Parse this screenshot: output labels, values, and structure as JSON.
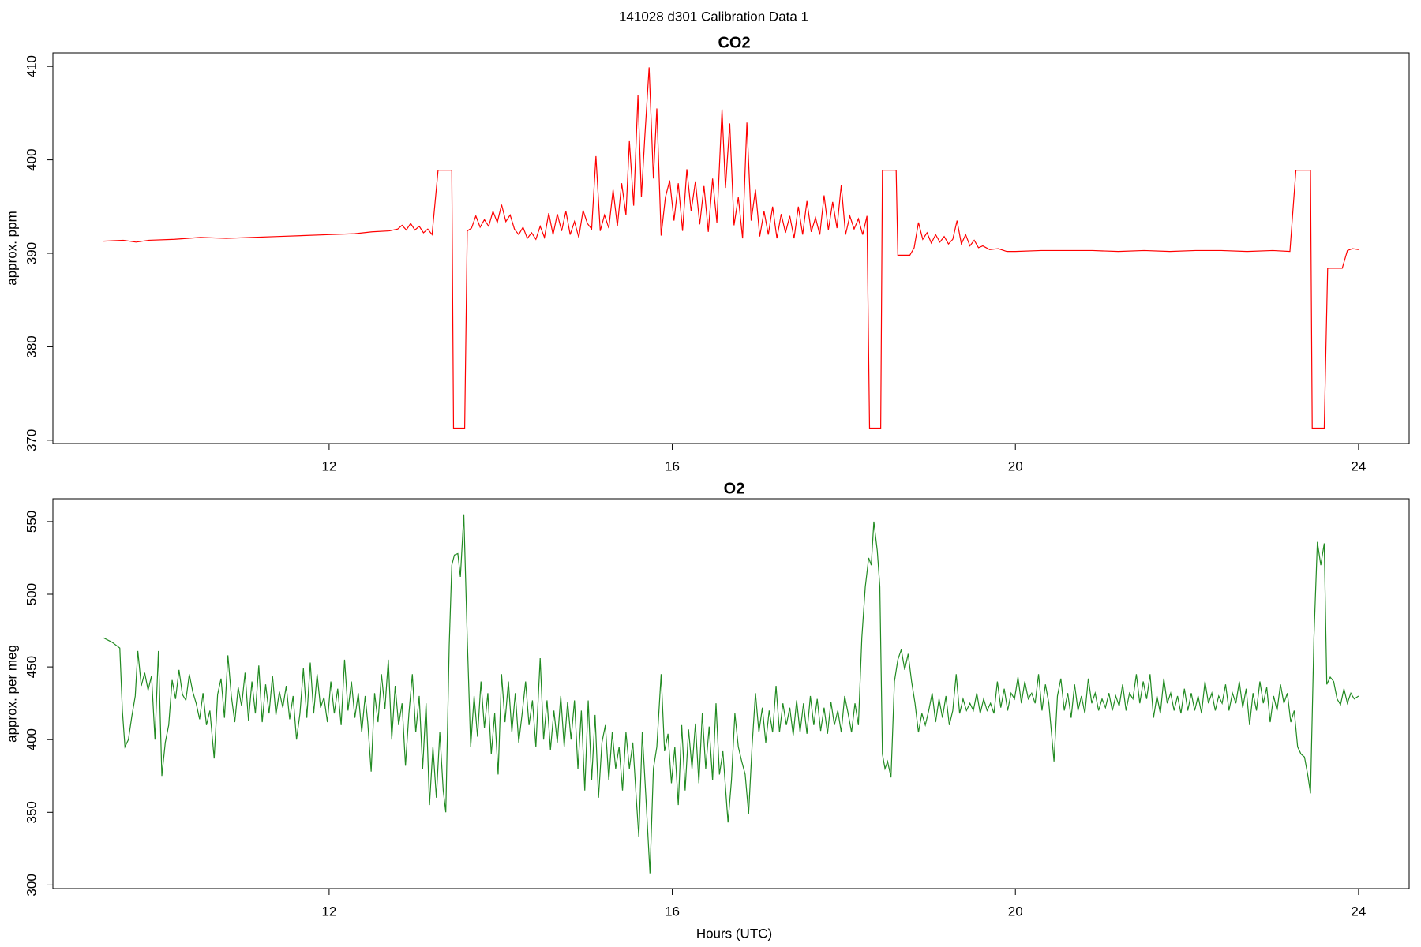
{
  "page_title": "141028   d301   Calibration Data 1",
  "chart_data": [
    {
      "type": "line",
      "title": "CO2",
      "y_label": "approx. ppm",
      "color": "#ff0000",
      "xlim": [
        8.78,
        24.59
      ],
      "xticks": [
        12,
        16,
        20,
        24
      ],
      "ylim": [
        369.65,
        411.45
      ],
      "yticks": [
        370,
        380,
        390,
        400,
        410
      ],
      "x": [
        9.37,
        9.6,
        9.75,
        9.9,
        10.2,
        10.5,
        10.8,
        11.1,
        11.4,
        11.7,
        12.0,
        12.3,
        12.5,
        12.7,
        12.8,
        12.85,
        12.9,
        12.95,
        13.0,
        13.05,
        13.1,
        13.15,
        13.2,
        13.27,
        13.43,
        13.45,
        13.58,
        13.61,
        13.66,
        13.71,
        13.76,
        13.81,
        13.86,
        13.91,
        13.96,
        14.01,
        14.06,
        14.11,
        14.16,
        14.21,
        14.26,
        14.31,
        14.36,
        14.41,
        14.46,
        14.51,
        14.56,
        14.61,
        14.66,
        14.71,
        14.76,
        14.81,
        14.86,
        14.91,
        14.96,
        15.01,
        15.06,
        15.11,
        15.16,
        15.21,
        15.26,
        15.31,
        15.36,
        15.41,
        15.46,
        15.5,
        15.55,
        15.6,
        15.64,
        15.68,
        15.73,
        15.78,
        15.82,
        15.87,
        15.92,
        15.97,
        16.02,
        16.07,
        16.12,
        16.17,
        16.22,
        16.27,
        16.32,
        16.37,
        16.42,
        16.47,
        16.52,
        16.58,
        16.62,
        16.67,
        16.72,
        16.77,
        16.82,
        16.87,
        16.92,
        16.97,
        17.02,
        17.07,
        17.12,
        17.17,
        17.22,
        17.27,
        17.32,
        17.37,
        17.42,
        17.47,
        17.52,
        17.57,
        17.62,
        17.67,
        17.72,
        17.77,
        17.82,
        17.87,
        17.92,
        17.97,
        18.02,
        18.07,
        18.12,
        18.17,
        18.22,
        18.27,
        18.3,
        18.43,
        18.45,
        18.61,
        18.63,
        18.77,
        18.82,
        18.87,
        18.92,
        18.97,
        19.02,
        19.07,
        19.12,
        19.17,
        19.22,
        19.27,
        19.32,
        19.37,
        19.42,
        19.47,
        19.52,
        19.57,
        19.62,
        19.7,
        19.8,
        19.9,
        20.0,
        20.3,
        20.6,
        20.9,
        21.2,
        21.5,
        21.8,
        22.1,
        22.4,
        22.7,
        23.0,
        23.2,
        23.27,
        23.44,
        23.46,
        23.6,
        23.64,
        23.81,
        23.87,
        23.93,
        24.0
      ],
      "values": [
        391.3,
        391.4,
        391.2,
        391.4,
        391.5,
        391.7,
        391.6,
        391.7,
        391.8,
        391.9,
        392.0,
        392.1,
        392.3,
        392.4,
        392.6,
        393.0,
        392.5,
        393.2,
        392.5,
        392.9,
        392.2,
        392.6,
        392.0,
        398.9,
        398.9,
        371.3,
        371.3,
        392.4,
        392.7,
        394.0,
        392.8,
        393.6,
        392.9,
        394.5,
        393.3,
        395.2,
        393.4,
        394.1,
        392.6,
        392.0,
        392.8,
        391.6,
        392.2,
        391.5,
        392.9,
        391.7,
        394.3,
        392.0,
        394.2,
        392.4,
        394.5,
        392.0,
        393.4,
        391.7,
        394.6,
        393.2,
        392.6,
        400.4,
        392.4,
        394.1,
        392.7,
        396.8,
        392.9,
        397.5,
        394.1,
        402.0,
        395.1,
        406.9,
        396.0,
        402.5,
        409.9,
        398.0,
        405.5,
        391.9,
        396.0,
        397.8,
        393.5,
        397.5,
        392.4,
        399.0,
        394.5,
        397.7,
        393.1,
        397.2,
        392.3,
        398.0,
        393.3,
        405.4,
        397.0,
        403.9,
        393.0,
        396.0,
        391.6,
        404.0,
        393.5,
        396.8,
        391.8,
        394.5,
        392.0,
        395.0,
        391.6,
        394.2,
        392.2,
        394.0,
        391.6,
        395.0,
        392.0,
        395.6,
        392.3,
        393.8,
        392.0,
        396.2,
        392.5,
        395.5,
        392.7,
        397.3,
        392.0,
        394.0,
        392.6,
        393.7,
        392.0,
        394.0,
        371.3,
        371.3,
        398.9,
        398.9,
        389.8,
        389.8,
        390.6,
        393.3,
        391.5,
        392.2,
        391.1,
        392.0,
        391.2,
        391.8,
        391.0,
        391.5,
        393.5,
        391.0,
        392.0,
        390.8,
        391.4,
        390.6,
        390.8,
        390.4,
        390.5,
        390.2,
        390.2,
        390.3,
        390.3,
        390.3,
        390.2,
        390.3,
        390.2,
        390.3,
        390.3,
        390.2,
        390.3,
        390.2,
        398.9,
        398.9,
        371.3,
        371.3,
        388.4,
        388.4,
        390.3,
        390.5,
        390.4
      ]
    },
    {
      "type": "line",
      "title": "O2",
      "y_label": "approx. per meg",
      "x_label": "Hours (UTC)",
      "color": "#228b22",
      "xlim": [
        8.78,
        24.59
      ],
      "xticks": [
        12,
        16,
        20,
        24
      ],
      "ylim": [
        297.5,
        565.7
      ],
      "yticks": [
        300,
        350,
        400,
        450,
        500,
        550
      ],
      "x": [
        9.37,
        9.47,
        9.56,
        9.59,
        9.62,
        9.66,
        9.7,
        9.74,
        9.77,
        9.81,
        9.85,
        9.89,
        9.93,
        9.97,
        10.01,
        10.05,
        10.09,
        10.13,
        10.17,
        10.21,
        10.25,
        10.29,
        10.33,
        10.37,
        10.41,
        10.45,
        10.49,
        10.53,
        10.57,
        10.61,
        10.66,
        10.7,
        10.74,
        10.78,
        10.82,
        10.86,
        10.9,
        10.94,
        10.98,
        11.02,
        11.06,
        11.1,
        11.14,
        11.18,
        11.22,
        11.26,
        11.3,
        11.34,
        11.38,
        11.42,
        11.46,
        11.5,
        11.54,
        11.58,
        11.62,
        11.66,
        11.7,
        11.74,
        11.78,
        11.82,
        11.86,
        11.9,
        11.94,
        11.98,
        12.02,
        12.06,
        12.1,
        12.14,
        12.18,
        12.22,
        12.26,
        12.3,
        12.34,
        12.38,
        12.42,
        12.45,
        12.49,
        12.53,
        12.57,
        12.61,
        12.65,
        12.69,
        12.73,
        12.77,
        12.81,
        12.85,
        12.89,
        12.93,
        12.97,
        13.01,
        13.05,
        13.09,
        13.13,
        13.17,
        13.21,
        13.25,
        13.29,
        13.33,
        13.36,
        13.4,
        13.43,
        13.46,
        13.5,
        13.53,
        13.57,
        13.61,
        13.65,
        13.69,
        13.73,
        13.77,
        13.81,
        13.85,
        13.89,
        13.93,
        13.97,
        14.01,
        14.05,
        14.09,
        14.13,
        14.17,
        14.21,
        14.25,
        14.29,
        14.33,
        14.37,
        14.41,
        14.46,
        14.5,
        14.54,
        14.58,
        14.62,
        14.66,
        14.7,
        14.74,
        14.78,
        14.82,
        14.86,
        14.9,
        14.94,
        14.98,
        15.02,
        15.06,
        15.1,
        15.14,
        15.18,
        15.22,
        15.26,
        15.3,
        15.34,
        15.38,
        15.42,
        15.46,
        15.5,
        15.54,
        15.58,
        15.61,
        15.65,
        15.69,
        15.74,
        15.78,
        15.82,
        15.87,
        15.91,
        15.95,
        15.99,
        16.03,
        16.07,
        16.11,
        16.15,
        16.19,
        16.23,
        16.27,
        16.31,
        16.35,
        16.39,
        16.43,
        16.47,
        16.51,
        16.55,
        16.59,
        16.65,
        16.69,
        16.73,
        16.77,
        16.81,
        16.85,
        16.89,
        16.93,
        16.97,
        17.01,
        17.05,
        17.09,
        17.13,
        17.17,
        17.21,
        17.25,
        17.29,
        17.33,
        17.37,
        17.41,
        17.45,
        17.49,
        17.53,
        17.57,
        17.61,
        17.65,
        17.69,
        17.73,
        17.77,
        17.81,
        17.85,
        17.89,
        17.93,
        17.97,
        18.01,
        18.05,
        18.09,
        18.13,
        18.17,
        18.21,
        18.25,
        18.29,
        18.32,
        18.35,
        18.39,
        18.42,
        18.45,
        18.48,
        18.51,
        18.55,
        18.59,
        18.63,
        18.67,
        18.71,
        18.75,
        18.79,
        18.83,
        18.87,
        18.91,
        18.95,
        18.99,
        19.03,
        19.07,
        19.11,
        19.15,
        19.19,
        19.23,
        19.27,
        19.31,
        19.35,
        19.39,
        19.43,
        19.47,
        19.51,
        19.55,
        19.59,
        19.63,
        19.67,
        19.71,
        19.75,
        19.79,
        19.83,
        19.87,
        19.91,
        19.95,
        19.99,
        20.03,
        20.07,
        20.11,
        20.15,
        20.19,
        20.23,
        20.27,
        20.31,
        20.35,
        20.39,
        20.45,
        20.49,
        20.53,
        20.57,
        20.61,
        20.65,
        20.69,
        20.73,
        20.77,
        20.81,
        20.85,
        20.89,
        20.93,
        20.97,
        21.01,
        21.05,
        21.09,
        21.13,
        21.17,
        21.21,
        21.25,
        21.29,
        21.33,
        21.37,
        21.41,
        21.45,
        21.49,
        21.53,
        21.57,
        21.61,
        21.65,
        21.69,
        21.73,
        21.77,
        21.81,
        21.85,
        21.89,
        21.93,
        21.97,
        22.01,
        22.05,
        22.09,
        22.13,
        22.17,
        22.21,
        22.25,
        22.29,
        22.33,
        22.37,
        22.41,
        22.45,
        22.49,
        22.53,
        22.57,
        22.61,
        22.65,
        22.69,
        22.73,
        22.77,
        22.81,
        22.85,
        22.89,
        22.93,
        22.97,
        23.01,
        23.05,
        23.09,
        23.13,
        23.17,
        23.21,
        23.25,
        23.29,
        23.33,
        23.37,
        23.41,
        23.44,
        23.48,
        23.52,
        23.56,
        23.6,
        23.63,
        23.67,
        23.71,
        23.75,
        23.79,
        23.83,
        23.87,
        23.91,
        23.95,
        24.0
      ],
      "values": [
        470,
        467,
        463,
        420,
        395,
        400,
        416,
        430,
        461,
        437,
        446,
        434,
        444,
        400,
        461,
        375,
        398,
        410,
        441,
        428,
        448,
        431,
        427,
        445,
        433,
        425,
        414,
        432,
        410,
        420,
        387,
        431,
        442,
        415,
        458,
        430,
        412,
        436,
        423,
        446,
        413,
        440,
        418,
        451,
        412,
        438,
        418,
        444,
        417,
        433,
        422,
        437,
        414,
        430,
        400,
        418,
        449,
        415,
        453,
        418,
        445,
        422,
        429,
        412,
        440,
        418,
        435,
        410,
        455,
        420,
        440,
        415,
        432,
        405,
        430,
        412,
        378,
        432,
        412,
        445,
        421,
        455,
        400,
        437,
        410,
        425,
        382,
        418,
        445,
        405,
        430,
        380,
        425,
        355,
        395,
        360,
        405,
        365,
        350,
        465,
        520,
        527,
        528,
        512,
        555,
        470,
        395,
        430,
        402,
        440,
        408,
        432,
        390,
        418,
        376,
        445,
        412,
        440,
        405,
        432,
        398,
        418,
        440,
        410,
        427,
        395,
        456,
        400,
        427,
        393,
        420,
        398,
        430,
        395,
        426,
        400,
        427,
        380,
        420,
        365,
        427,
        372,
        417,
        360,
        398,
        410,
        372,
        405,
        380,
        395,
        365,
        405,
        380,
        398,
        360,
        333,
        405,
        363,
        308,
        380,
        395,
        445,
        392,
        404,
        370,
        395,
        355,
        410,
        365,
        407,
        380,
        411,
        370,
        418,
        380,
        409,
        372,
        425,
        376,
        392,
        343,
        372,
        418,
        395,
        385,
        376,
        349,
        395,
        432,
        405,
        422,
        398,
        420,
        405,
        437,
        405,
        425,
        410,
        422,
        403,
        427,
        405,
        425,
        404,
        430,
        410,
        428,
        406,
        422,
        404,
        426,
        410,
        420,
        405,
        430,
        418,
        405,
        425,
        410,
        470,
        505,
        525,
        520,
        550,
        530,
        505,
        390,
        380,
        385,
        374,
        440,
        455,
        462,
        448,
        459,
        440,
        425,
        405,
        418,
        410,
        420,
        432,
        412,
        428,
        415,
        430,
        410,
        420,
        445,
        418,
        428,
        420,
        425,
        420,
        432,
        418,
        428,
        420,
        425,
        418,
        440,
        422,
        435,
        420,
        432,
        428,
        443,
        425,
        440,
        428,
        432,
        425,
        445,
        420,
        438,
        425,
        385,
        430,
        442,
        420,
        432,
        415,
        438,
        420,
        430,
        418,
        442,
        425,
        432,
        420,
        428,
        422,
        432,
        420,
        430,
        423,
        438,
        420,
        432,
        428,
        445,
        425,
        440,
        428,
        445,
        415,
        430,
        418,
        442,
        425,
        432,
        420,
        430,
        418,
        435,
        420,
        432,
        420,
        430,
        418,
        440,
        425,
        432,
        420,
        430,
        425,
        438,
        420,
        432,
        425,
        440,
        422,
        435,
        410,
        432,
        420,
        440,
        425,
        436,
        412,
        430,
        420,
        438,
        425,
        432,
        412,
        420,
        395,
        390,
        388,
        375,
        363,
        470,
        536,
        520,
        535,
        438,
        443,
        440,
        428,
        424,
        435,
        425,
        432,
        428,
        430
      ]
    }
  ]
}
